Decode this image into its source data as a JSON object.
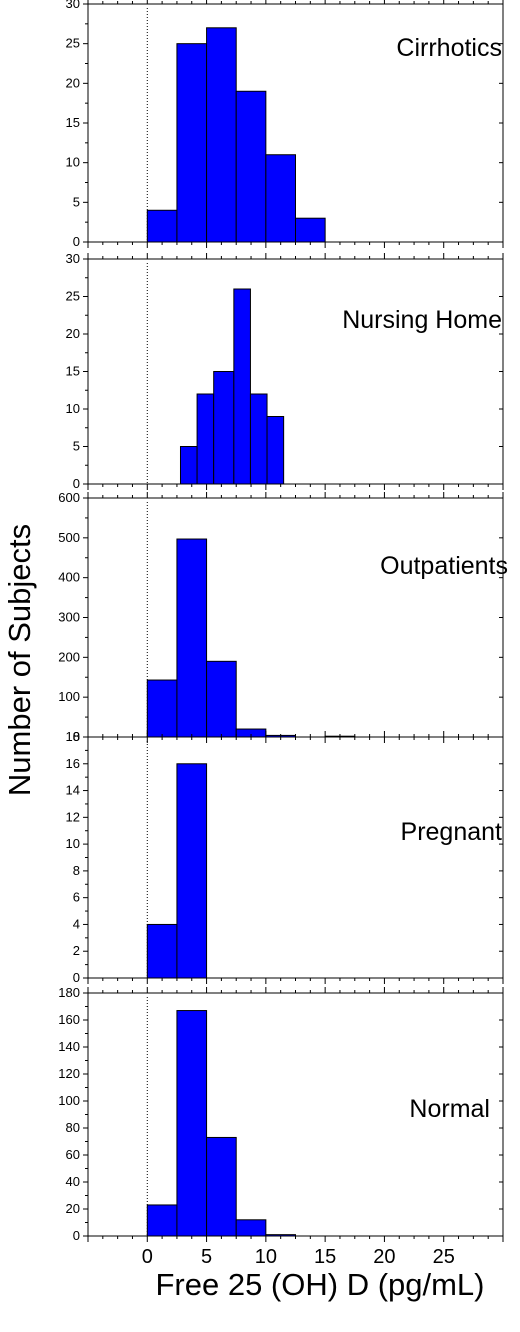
{
  "chart_data": {
    "type": "bar",
    "xlabel": "Free 25 (OH) D (pg/mL)",
    "ylabel": "Number of Subjects",
    "xlim": [
      -5,
      30
    ],
    "xticks": [
      0,
      5,
      10,
      15,
      20,
      25
    ],
    "bin_width": 2.5,
    "bar_color": "#0000FF",
    "panels": [
      {
        "label": "Cirrhotics",
        "ylim": [
          0,
          30
        ],
        "yticks": [
          0,
          5,
          10,
          15,
          20,
          25,
          30
        ],
        "bins": [
          {
            "x0": 0,
            "x1": 2.5,
            "value": 4
          },
          {
            "x0": 2.5,
            "x1": 5,
            "value": 25
          },
          {
            "x0": 5,
            "x1": 7.5,
            "value": 27
          },
          {
            "x0": 7.5,
            "x1": 10,
            "value": 19
          },
          {
            "x0": 10,
            "x1": 12.5,
            "value": 11
          },
          {
            "x0": 12.5,
            "x1": 15,
            "value": 3
          }
        ]
      },
      {
        "label": "Nursing Home",
        "ylim": [
          0,
          30
        ],
        "yticks": [
          0,
          5,
          10,
          15,
          20,
          25,
          30
        ],
        "bins": [
          {
            "x0": 2.8,
            "x1": 4.2,
            "value": 5
          },
          {
            "x0": 4.2,
            "x1": 5.6,
            "value": 12
          },
          {
            "x0": 5.6,
            "x1": 7.3,
            "value": 15
          },
          {
            "x0": 7.3,
            "x1": 8.7,
            "value": 26
          },
          {
            "x0": 8.7,
            "x1": 10.1,
            "value": 12
          },
          {
            "x0": 10.1,
            "x1": 11.5,
            "value": 9
          }
        ]
      },
      {
        "label": "Outpatients",
        "ylim": [
          0,
          600
        ],
        "yticks": [
          0,
          100,
          200,
          300,
          400,
          500,
          600
        ],
        "bins": [
          {
            "x0": 0,
            "x1": 2.5,
            "value": 143
          },
          {
            "x0": 2.5,
            "x1": 5,
            "value": 497
          },
          {
            "x0": 5,
            "x1": 7.5,
            "value": 190
          },
          {
            "x0": 7.5,
            "x1": 10,
            "value": 20
          },
          {
            "x0": 10,
            "x1": 12.5,
            "value": 4
          },
          {
            "x0": 15,
            "x1": 17.5,
            "value": 2
          }
        ]
      },
      {
        "label": "Pregnant",
        "ylim": [
          0,
          18
        ],
        "yticks": [
          0,
          2,
          4,
          6,
          8,
          10,
          12,
          14,
          16,
          18
        ],
        "bins": [
          {
            "x0": 0,
            "x1": 2.5,
            "value": 4
          },
          {
            "x0": 2.5,
            "x1": 5,
            "value": 16
          }
        ]
      },
      {
        "label": "Normal",
        "ylim": [
          0,
          180
        ],
        "yticks": [
          0,
          20,
          40,
          60,
          80,
          100,
          120,
          140,
          160,
          180
        ],
        "bins": [
          {
            "x0": 0,
            "x1": 2.5,
            "value": 23
          },
          {
            "x0": 2.5,
            "x1": 5,
            "value": 167
          },
          {
            "x0": 5,
            "x1": 7.5,
            "value": 73
          },
          {
            "x0": 7.5,
            "x1": 10,
            "value": 12
          },
          {
            "x0": 10,
            "x1": 12.5,
            "value": 1
          }
        ]
      }
    ]
  }
}
